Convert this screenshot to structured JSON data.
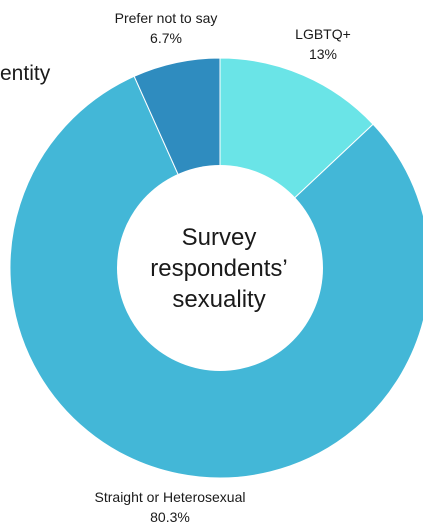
{
  "partial_title": "entity",
  "center_label": [
    "Survey",
    "respondents’",
    "sexuality"
  ],
  "colors": {
    "prefer_not": "#2f8cbf",
    "lgbtq": "#6ae4e7",
    "straight": "#43b7d7"
  },
  "chart_data": {
    "type": "pie",
    "variant": "donut",
    "categories": [
      "LGBTQ+",
      "Straight or Heterosexual",
      "Prefer not to say"
    ],
    "values": [
      13,
      80.3,
      6.7
    ],
    "value_labels": [
      "13%",
      "80.3%",
      "6.7%"
    ],
    "colors": [
      "#6ae4e7",
      "#43b7d7",
      "#2f8cbf"
    ],
    "start": "12 o'clock",
    "direction": "clockwise",
    "legend": "none",
    "title": ""
  }
}
